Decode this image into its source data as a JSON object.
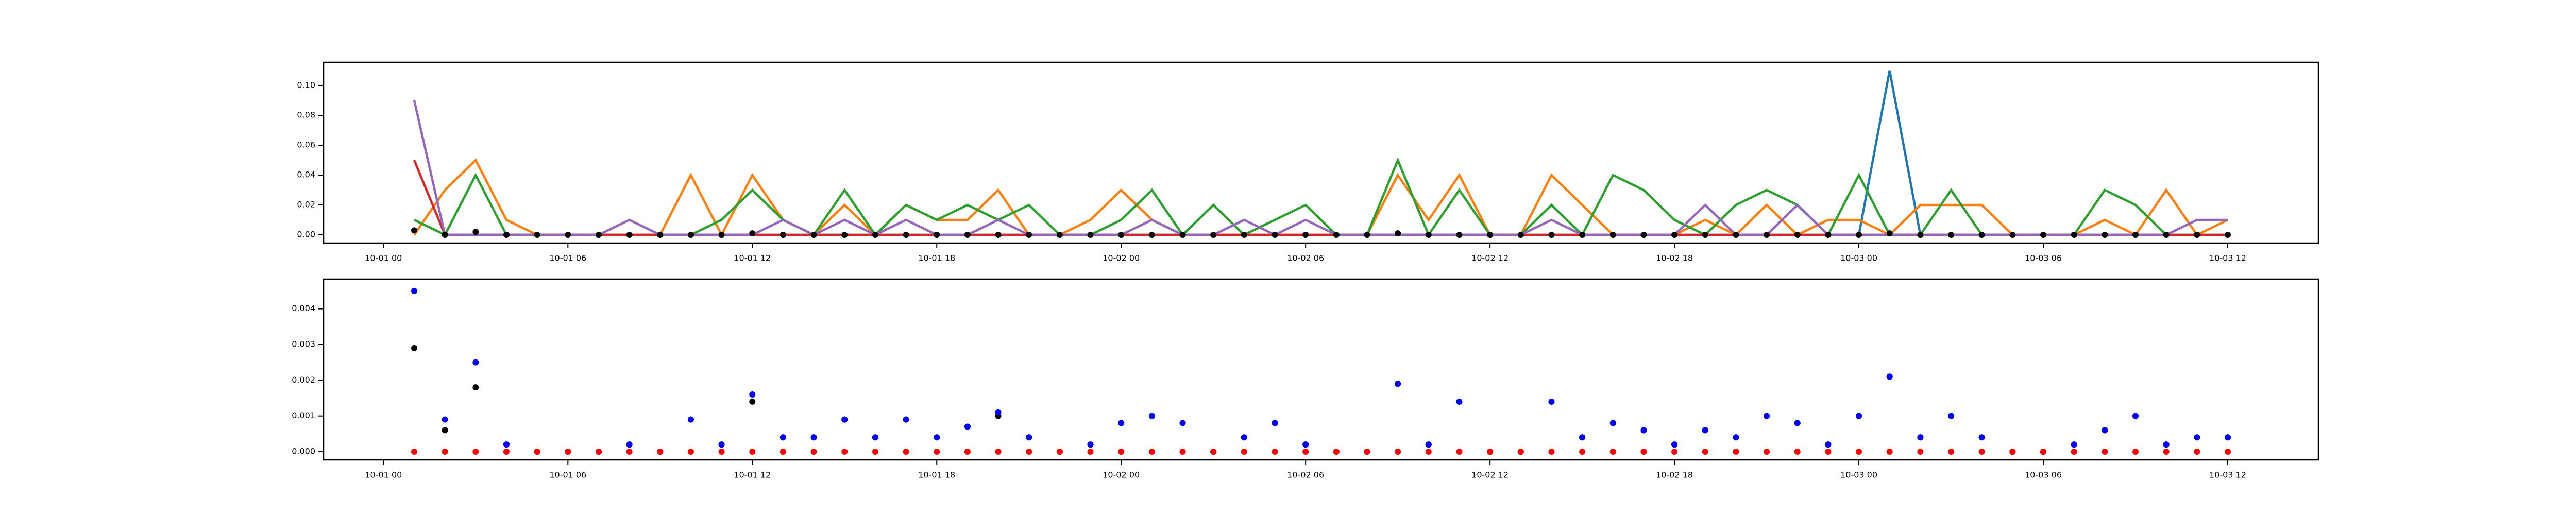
{
  "chart_data": [
    {
      "type": "line",
      "x": [
        "10-01 01",
        "10-01 02",
        "10-01 03",
        "10-01 04",
        "10-01 05",
        "10-01 06",
        "10-01 07",
        "10-01 08",
        "10-01 09",
        "10-01 10",
        "10-01 11",
        "10-01 12",
        "10-01 13",
        "10-01 14",
        "10-01 15",
        "10-01 16",
        "10-01 17",
        "10-01 18",
        "10-01 19",
        "10-01 20",
        "10-01 21",
        "10-01 22",
        "10-01 23",
        "10-02 00",
        "10-02 01",
        "10-02 02",
        "10-02 03",
        "10-02 04",
        "10-02 05",
        "10-02 06",
        "10-02 07",
        "10-02 08",
        "10-02 09",
        "10-02 10",
        "10-02 11",
        "10-02 12",
        "10-02 13",
        "10-02 14",
        "10-02 15",
        "10-02 16",
        "10-02 17",
        "10-02 18",
        "10-02 19",
        "10-02 20",
        "10-02 21",
        "10-02 22",
        "10-02 23",
        "10-03 00",
        "10-03 01",
        "10-03 02",
        "10-03 03",
        "10-03 04",
        "10-03 05",
        "10-03 06",
        "10-03 07",
        "10-03 08",
        "10-03 09",
        "10-03 10",
        "10-03 11",
        "10-03 12"
      ],
      "series": [
        {
          "color": "#1f77b4",
          "mode": "line",
          "values": [
            0.01,
            0,
            0,
            0,
            0,
            0,
            0,
            0,
            0,
            0,
            0,
            0,
            0,
            0,
            0,
            0,
            0,
            0,
            0,
            0,
            0,
            0,
            0,
            0,
            0,
            0,
            0,
            0,
            0,
            0,
            0,
            0,
            0,
            0,
            0,
            0,
            0,
            0,
            0,
            0,
            0,
            0,
            0,
            0,
            0,
            0,
            0,
            0,
            0.11,
            0,
            0,
            0,
            0,
            0,
            0,
            0,
            0,
            0,
            0,
            0
          ]
        },
        {
          "color": "#ff7f0e",
          "mode": "line",
          "values": [
            0,
            0.03,
            0.05,
            0.01,
            0,
            0,
            0,
            0,
            0,
            0.04,
            0,
            0.04,
            0.01,
            0,
            0.02,
            0,
            0.02,
            0.01,
            0.01,
            0.03,
            0,
            0,
            0.01,
            0.03,
            0.01,
            0,
            0,
            0,
            0,
            0,
            0,
            0,
            0.04,
            0.01,
            0.04,
            0,
            0,
            0.04,
            0.02,
            0,
            0,
            0,
            0.01,
            0,
            0.02,
            0,
            0.01,
            0.01,
            0,
            0.02,
            0.02,
            0.02,
            0,
            0,
            0,
            0.01,
            0,
            0.03,
            0,
            0.01
          ]
        },
        {
          "color": "#2ca02c",
          "mode": "line",
          "values": [
            0.01,
            0,
            0.04,
            0,
            0,
            0,
            0,
            0,
            0,
            0,
            0.01,
            0.03,
            0.01,
            0,
            0.03,
            0,
            0.02,
            0.01,
            0.02,
            0.01,
            0.02,
            0,
            0,
            0.01,
            0.03,
            0,
            0.02,
            0,
            0.01,
            0.02,
            0,
            0,
            0.05,
            0,
            0.03,
            0,
            0,
            0.02,
            0,
            0.04,
            0.03,
            0.01,
            0,
            0.02,
            0.03,
            0.02,
            0,
            0.04,
            0,
            0,
            0.03,
            0,
            0,
            0,
            0,
            0.03,
            0.02,
            0,
            0,
            0
          ]
        },
        {
          "color": "#d62728",
          "mode": "line",
          "values": [
            0.05,
            0,
            0,
            0,
            0,
            0,
            0,
            0,
            0,
            0,
            0,
            0,
            0,
            0,
            0,
            0,
            0,
            0,
            0,
            0,
            0,
            0,
            0,
            0,
            0,
            0,
            0,
            0,
            0,
            0,
            0,
            0,
            0,
            0,
            0,
            0,
            0,
            0,
            0,
            0,
            0,
            0,
            0,
            0,
            0,
            0,
            0,
            0,
            0,
            0,
            0,
            0,
            0,
            0,
            0,
            0,
            0,
            0,
            0,
            0
          ]
        },
        {
          "color": "#9467bd",
          "mode": "line",
          "values": [
            0.09,
            0,
            0,
            0,
            0,
            0,
            0,
            0.01,
            0,
            0,
            0,
            0,
            0.01,
            0,
            0.01,
            0,
            0.01,
            0,
            0,
            0.01,
            0,
            0,
            0,
            0,
            0.01,
            0,
            0,
            0.01,
            0,
            0.01,
            0,
            0,
            0,
            0,
            0,
            0,
            0,
            0.01,
            0,
            0,
            0,
            0,
            0.02,
            0,
            0,
            0.02,
            0,
            0,
            0,
            0,
            0,
            0,
            0,
            0,
            0,
            0,
            0,
            0,
            0.01,
            0.01
          ]
        },
        {
          "color": "#000000",
          "mode": "markers",
          "values": [
            0.003,
            0,
            0.002,
            0,
            0,
            0,
            0,
            0,
            0,
            0,
            0,
            0.001,
            0,
            0,
            0,
            0,
            0,
            0,
            0,
            0,
            0,
            0,
            0,
            0,
            0,
            0,
            0,
            0,
            0,
            0,
            0,
            0,
            0.001,
            0,
            0,
            0,
            0,
            0,
            0,
            0,
            0,
            0,
            0,
            0,
            0,
            0,
            0,
            0,
            0.001,
            0,
            0,
            0,
            0,
            0,
            0,
            0,
            0,
            0,
            0,
            0
          ]
        }
      ],
      "xlim": [
        "09-30 22:03",
        "10-03 14:57"
      ],
      "xticks": [
        "10-01 00",
        "10-01 06",
        "10-01 12",
        "10-01 18",
        "10-02 00",
        "10-02 06",
        "10-02 12",
        "10-02 18",
        "10-03 00",
        "10-03 06",
        "10-03 12"
      ],
      "ylim": [
        -0.0055,
        0.1155
      ],
      "yticks": [
        {
          "value": 0,
          "label": "0.00"
        },
        {
          "value": 0.02,
          "label": "0.02"
        },
        {
          "value": 0.04,
          "label": "0.04"
        },
        {
          "value": 0.06,
          "label": "0.06"
        },
        {
          "value": 0.08,
          "label": "0.08"
        },
        {
          "value": 0.1,
          "label": "0.10"
        }
      ]
    },
    {
      "type": "scatter",
      "x": [
        "10-01 01",
        "10-01 02",
        "10-01 03",
        "10-01 04",
        "10-01 05",
        "10-01 06",
        "10-01 07",
        "10-01 08",
        "10-01 09",
        "10-01 10",
        "10-01 11",
        "10-01 12",
        "10-01 13",
        "10-01 14",
        "10-01 15",
        "10-01 16",
        "10-01 17",
        "10-01 18",
        "10-01 19",
        "10-01 20",
        "10-01 21",
        "10-01 22",
        "10-01 23",
        "10-02 00",
        "10-02 01",
        "10-02 02",
        "10-02 03",
        "10-02 04",
        "10-02 05",
        "10-02 06",
        "10-02 07",
        "10-02 08",
        "10-02 09",
        "10-02 10",
        "10-02 11",
        "10-02 12",
        "10-02 13",
        "10-02 14",
        "10-02 15",
        "10-02 16",
        "10-02 17",
        "10-02 18",
        "10-02 19",
        "10-02 20",
        "10-02 21",
        "10-02 22",
        "10-02 23",
        "10-03 00",
        "10-03 01",
        "10-03 02",
        "10-03 03",
        "10-03 04",
        "10-03 05",
        "10-03 06",
        "10-03 07",
        "10-03 08",
        "10-03 09",
        "10-03 10",
        "10-03 11",
        "10-03 12"
      ],
      "series": [
        {
          "color": "#000000",
          "mode": "markers",
          "values": [
            0.0029,
            0.0006,
            0.0018,
            0.0002,
            0,
            0,
            0,
            0.0002,
            0,
            0.0009,
            0.0002,
            0.0014,
            0.0004,
            0.0004,
            0.0009,
            0.0004,
            0.0009,
            0.0004,
            0.0007,
            0.001,
            0.0004,
            0,
            0.0002,
            0.0008,
            0.001,
            0.0008,
            0,
            0.0004,
            0.0008,
            0.0002,
            0,
            0,
            0.0019,
            0.0002,
            0.0014,
            0,
            0,
            0.0014,
            0.0004,
            0.0008,
            0.0006,
            0.0002,
            0.0006,
            0.0004,
            0.001,
            0.0008,
            0.0002,
            0.001,
            0.0021,
            0.0004,
            0.001,
            0.0004,
            0,
            0,
            0.0002,
            0.0006,
            0.001,
            0.0002,
            0.0004,
            0.0004
          ]
        },
        {
          "color": "#0000ff",
          "mode": "markers",
          "values": [
            0.0045,
            0.0009,
            0.0025,
            0.0002,
            0,
            0,
            0,
            0.0002,
            0,
            0.0009,
            0.0002,
            0.0016,
            0.0004,
            0.0004,
            0.0009,
            0.0004,
            0.0009,
            0.0004,
            0.0007,
            0.0011,
            0.0004,
            0,
            0.0002,
            0.0008,
            0.001,
            0.0008,
            0,
            0.0004,
            0.0008,
            0.0002,
            0,
            0,
            0.0019,
            0.0002,
            0.0014,
            0,
            0,
            0.0014,
            0.0004,
            0.0008,
            0.0006,
            0.0002,
            0.0006,
            0.0004,
            0.001,
            0.0008,
            0.0002,
            0.001,
            0.0021,
            0.0004,
            0.001,
            0.0004,
            0,
            0,
            0.0002,
            0.0006,
            0.001,
            0.0002,
            0.0004,
            0.0004
          ]
        },
        {
          "color": "#ff0000",
          "mode": "markers",
          "values": [
            0,
            0,
            0,
            0,
            0,
            0,
            0,
            0,
            0,
            0,
            0,
            0,
            0,
            0,
            0,
            0,
            0,
            0,
            0,
            0,
            0,
            0,
            0,
            0,
            0,
            0,
            0,
            0,
            0,
            0,
            0,
            0,
            0,
            0,
            0,
            0,
            0,
            0,
            0,
            0,
            0,
            0,
            0,
            0,
            0,
            0,
            0,
            0,
            0,
            0,
            0,
            0,
            0,
            0,
            0,
            0,
            0,
            0,
            0,
            0
          ]
        }
      ],
      "xlim": [
        "09-30 22:03",
        "10-03 14:57"
      ],
      "xticks": [
        "10-01 00",
        "10-01 06",
        "10-01 12",
        "10-01 18",
        "10-02 00",
        "10-02 06",
        "10-02 12",
        "10-02 18",
        "10-03 00",
        "10-03 06",
        "10-03 12"
      ],
      "ylim": [
        -0.00023,
        0.00483
      ],
      "yticks": [
        {
          "value": 0,
          "label": "0.000"
        },
        {
          "value": 0.001,
          "label": "0.001"
        },
        {
          "value": 0.002,
          "label": "0.002"
        },
        {
          "value": 0.003,
          "label": "0.003"
        },
        {
          "value": 0.004,
          "label": "0.004"
        }
      ]
    }
  ]
}
